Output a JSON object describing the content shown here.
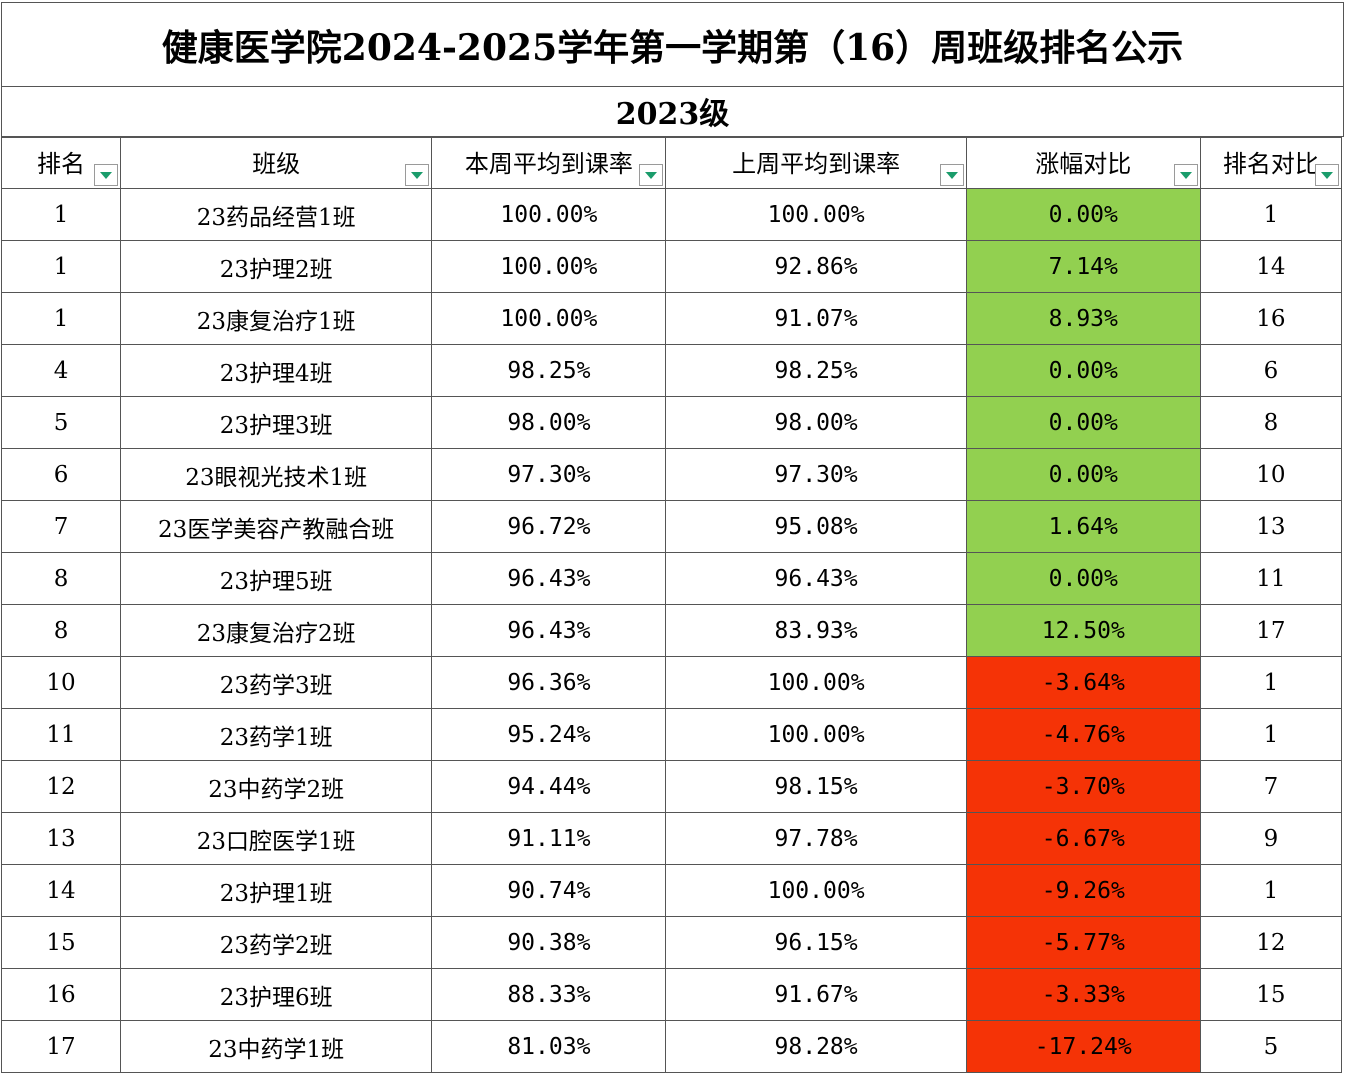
{
  "title": "健康医学院2024-2025学年第一学期第（16）周班级排名公示",
  "grade": "2023级",
  "columns": [
    "排名",
    "班级",
    "本周平均到课率",
    "上周平均到课率",
    "涨幅对比",
    "排名对比"
  ],
  "colors": {
    "increase": "#92d050",
    "decrease": "#f53306",
    "filter_arrow": "#1a9c6b"
  },
  "rows": [
    {
      "rank": "1",
      "class": "23药品经营1班",
      "this_week": "100.00%",
      "last_week": "100.00%",
      "change": "0.00%",
      "trend": "up",
      "rank_compare": "1"
    },
    {
      "rank": "1",
      "class": "23护理2班",
      "this_week": "100.00%",
      "last_week": "92.86%",
      "change": "7.14%",
      "trend": "up",
      "rank_compare": "14"
    },
    {
      "rank": "1",
      "class": "23康复治疗1班",
      "this_week": "100.00%",
      "last_week": "91.07%",
      "change": "8.93%",
      "trend": "up",
      "rank_compare": "16"
    },
    {
      "rank": "4",
      "class": "23护理4班",
      "this_week": "98.25%",
      "last_week": "98.25%",
      "change": "0.00%",
      "trend": "up",
      "rank_compare": "6"
    },
    {
      "rank": "5",
      "class": "23护理3班",
      "this_week": "98.00%",
      "last_week": "98.00%",
      "change": "0.00%",
      "trend": "up",
      "rank_compare": "8"
    },
    {
      "rank": "6",
      "class": "23眼视光技术1班",
      "this_week": "97.30%",
      "last_week": "97.30%",
      "change": "0.00%",
      "trend": "up",
      "rank_compare": "10"
    },
    {
      "rank": "7",
      "class": "23医学美容产教融合班",
      "this_week": "96.72%",
      "last_week": "95.08%",
      "change": "1.64%",
      "trend": "up",
      "rank_compare": "13"
    },
    {
      "rank": "8",
      "class": "23护理5班",
      "this_week": "96.43%",
      "last_week": "96.43%",
      "change": "0.00%",
      "trend": "up",
      "rank_compare": "11"
    },
    {
      "rank": "8",
      "class": "23康复治疗2班",
      "this_week": "96.43%",
      "last_week": "83.93%",
      "change": "12.50%",
      "trend": "up",
      "rank_compare": "17"
    },
    {
      "rank": "10",
      "class": "23药学3班",
      "this_week": "96.36%",
      "last_week": "100.00%",
      "change": "-3.64%",
      "trend": "down",
      "rank_compare": "1"
    },
    {
      "rank": "11",
      "class": "23药学1班",
      "this_week": "95.24%",
      "last_week": "100.00%",
      "change": "-4.76%",
      "trend": "down",
      "rank_compare": "1"
    },
    {
      "rank": "12",
      "class": "23中药学2班",
      "this_week": "94.44%",
      "last_week": "98.15%",
      "change": "-3.70%",
      "trend": "down",
      "rank_compare": "7"
    },
    {
      "rank": "13",
      "class": "23口腔医学1班",
      "this_week": "91.11%",
      "last_week": "97.78%",
      "change": "-6.67%",
      "trend": "down",
      "rank_compare": "9"
    },
    {
      "rank": "14",
      "class": "23护理1班",
      "this_week": "90.74%",
      "last_week": "100.00%",
      "change": "-9.26%",
      "trend": "down",
      "rank_compare": "1"
    },
    {
      "rank": "15",
      "class": "23药学2班",
      "this_week": "90.38%",
      "last_week": "96.15%",
      "change": "-5.77%",
      "trend": "down",
      "rank_compare": "12"
    },
    {
      "rank": "16",
      "class": "23护理6班",
      "this_week": "88.33%",
      "last_week": "91.67%",
      "change": "-3.33%",
      "trend": "down",
      "rank_compare": "15"
    },
    {
      "rank": "17",
      "class": "23中药学1班",
      "this_week": "81.03%",
      "last_week": "98.28%",
      "change": "-17.24%",
      "trend": "down",
      "rank_compare": "5"
    }
  ]
}
